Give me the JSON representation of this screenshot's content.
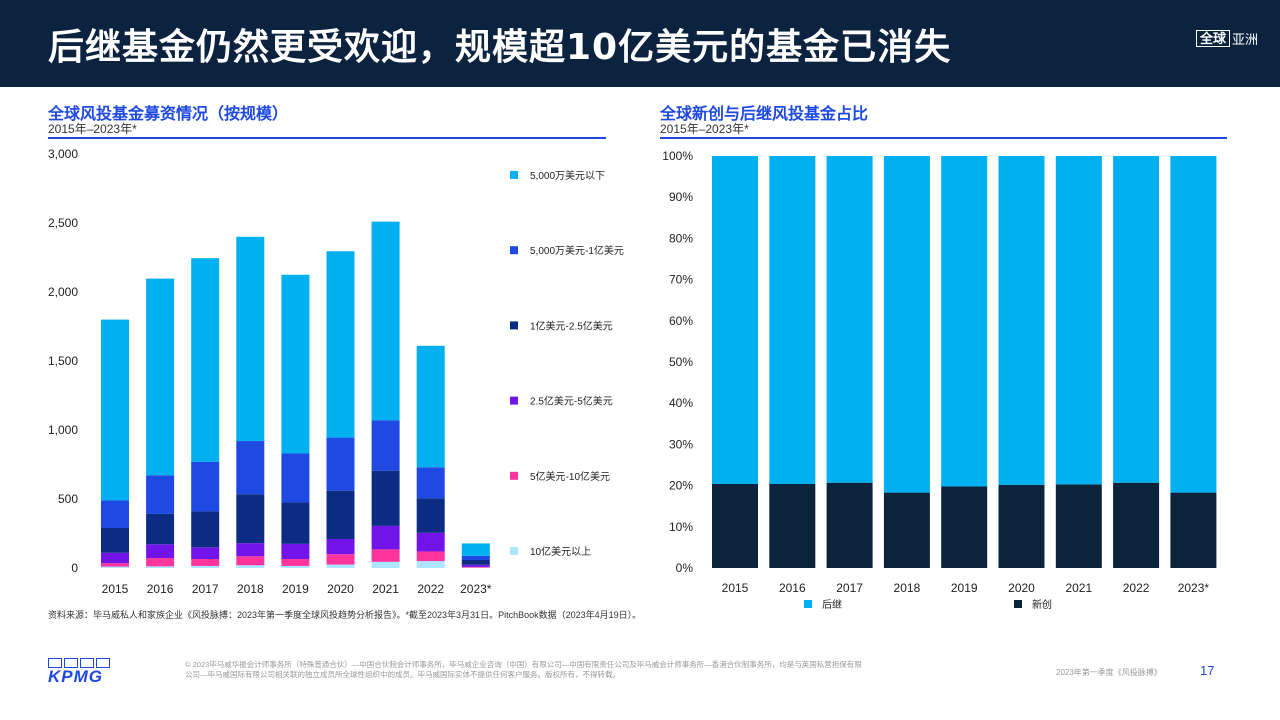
{
  "header": {
    "title": "后继基金仍然更受欢迎，规模超10亿美元的基金已消失",
    "region_box": "全球",
    "region_text": "亚洲"
  },
  "colors": {
    "header_bg": "#0c2340",
    "accent": "#1e49e2",
    "under_50m": "#00b0f0",
    "m50_100": "#1e49e2",
    "m100_250": "#0c2c84",
    "m250_500": "#7213ea",
    "m500_1b": "#fd349c",
    "over_1b": "#ace6ff",
    "follow_on": "#00b0f0",
    "first_time": "#0c233c"
  },
  "left_chart": {
    "title": "全球风投基金募资情况（按规模）",
    "subtitle": "2015年–2023年*"
  },
  "right_chart": {
    "title": "全球新创与后继风投基金占比",
    "subtitle": "2015年–2023年*"
  },
  "chart_data": [
    {
      "type": "bar",
      "stacked": true,
      "title": "全球风投基金募资情况（按规模）",
      "subtitle": "2015年–2023年*",
      "categories": [
        "2015",
        "2016",
        "2017",
        "2018",
        "2019",
        "2020",
        "2021",
        "2022",
        "2023*"
      ],
      "ylim": [
        0,
        3000
      ],
      "yticks": [
        "0",
        "500",
        "1,000",
        "1,500",
        "2,000",
        "2,500",
        "3,000"
      ],
      "legend_position": "right",
      "series": [
        {
          "name": "10亿美元以上",
          "color": "#ace6ff",
          "values": [
            10,
            12,
            15,
            20,
            15,
            25,
            45,
            50,
            3
          ]
        },
        {
          "name": "5亿美元-10亿美元",
          "color": "#fd349c",
          "values": [
            25,
            60,
            50,
            65,
            50,
            75,
            90,
            70,
            5
          ]
        },
        {
          "name": "2.5亿美元-5亿美元",
          "color": "#7213ea",
          "values": [
            75,
            100,
            85,
            95,
            110,
            110,
            170,
            135,
            15
          ]
        },
        {
          "name": "1亿美元-2.5亿美元",
          "color": "#0c2c84",
          "values": [
            180,
            220,
            260,
            355,
            300,
            350,
            400,
            250,
            35
          ]
        },
        {
          "name": "5,000万美元-1亿美元",
          "color": "#1e49e2",
          "values": [
            200,
            280,
            360,
            385,
            355,
            385,
            365,
            225,
            30
          ]
        },
        {
          "name": "5,000万美元以下",
          "color": "#00b0f0",
          "values": [
            1310,
            1425,
            1475,
            1480,
            1295,
            1350,
            1440,
            880,
            90
          ]
        }
      ]
    },
    {
      "type": "bar",
      "stacked": true,
      "percent": true,
      "title": "全球新创与后继风投基金占比",
      "subtitle": "2015年–2023年*",
      "categories": [
        "2015",
        "2016",
        "2017",
        "2018",
        "2019",
        "2020",
        "2021",
        "2022",
        "2023*"
      ],
      "ylim": [
        0,
        100
      ],
      "yticks": [
        "0%",
        "10%",
        "20%",
        "30%",
        "40%",
        "50%",
        "60%",
        "70%",
        "80%",
        "90%",
        "100%"
      ],
      "legend_position": "bottom",
      "series": [
        {
          "name": "新创",
          "color": "#0c233c",
          "values": [
            20.4,
            20.4,
            20.7,
            18.3,
            19.8,
            20.2,
            20.3,
            20.7,
            18.3
          ]
        },
        {
          "name": "后继",
          "color": "#00b0f0",
          "values": [
            79.6,
            79.6,
            79.3,
            81.7,
            80.2,
            79.8,
            79.7,
            79.3,
            81.7
          ]
        }
      ]
    }
  ],
  "footer": {
    "source": "资料来源：毕马威私人和家族企业《风投脉搏：2023年第一季度全球风投趋势分析报告》。*截至2023年3月31日。PitchBook数据（2023年4月19日）。",
    "legal": "© 2023毕马威华振会计师事务所（特殊普通合伙）—中国合伙制会计师事务所，毕马威企业咨询（中国）有限公司—中国有限责任公司及毕马威会计师事务所—香港合伙制事务所，均是与英国私营担保有限公司—毕马威国际有限公司相关联的独立成员所全球性组织中的成员。毕马威国际实体不提供任何客户服务。版权所有，不得转载。",
    "report": "2023年第一季度《风投脉搏》",
    "page": "17",
    "logo_text": "KPMG"
  }
}
